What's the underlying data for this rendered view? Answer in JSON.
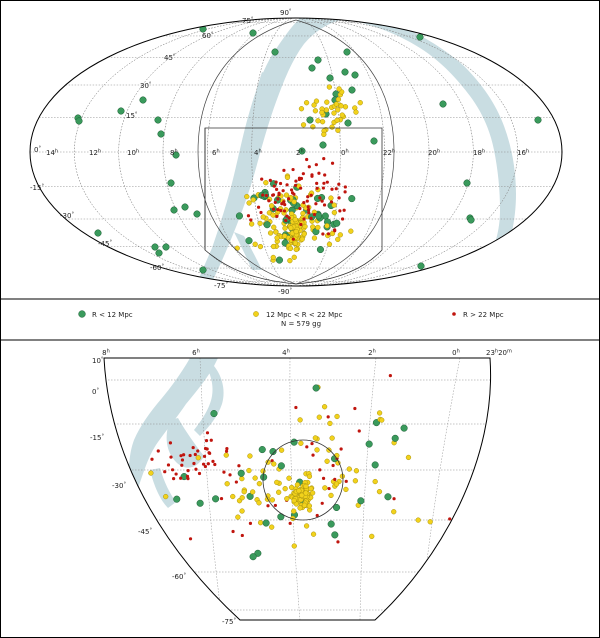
{
  "colors": {
    "near": "#3a9a5c",
    "mid": "#f2d21b",
    "far": "#c0150e",
    "milkyway": "#c9dde2",
    "grid": "#8a8a8a",
    "frame": "#000000"
  },
  "top_map": {
    "ra_labels": [
      "14",
      "12",
      "10",
      "8",
      "6",
      "4",
      "2",
      "0",
      "22",
      "20",
      "18",
      "16"
    ],
    "ra_unit": "h",
    "dec_labels": [
      "90",
      "75",
      "60",
      "45",
      "30",
      "15",
      "0",
      "-15",
      "-30",
      "-45",
      "-60",
      "-75",
      "-90"
    ],
    "dec_unit": "°"
  },
  "legend": {
    "near_label": "R < 12 Mpc",
    "mid_label": "12 Mpc < R < 22 Mpc",
    "far_label": "R > 22 Mpc",
    "count_label": "N = 579 gg"
  },
  "bottom_map": {
    "ra_labels": [
      "8",
      "6",
      "4",
      "2",
      "0"
    ],
    "ra_unit": "h",
    "ra_edge_label": "23",
    "ra_edge_min": "20",
    "dec_labels": [
      "10",
      "0",
      "-15",
      "-30",
      "-45",
      "-60",
      "-75"
    ],
    "dec_unit": "°"
  }
}
